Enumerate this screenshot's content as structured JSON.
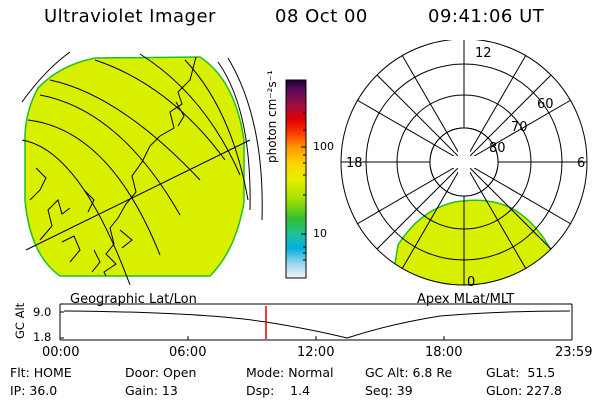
{
  "header": {
    "title": "Ultraviolet Imager",
    "date": "08 Oct 00",
    "time": "09:41:06 UT"
  },
  "colorbar": {
    "label": "photon cm⁻²s⁻¹",
    "tick_100": "100",
    "tick_10": "10"
  },
  "left_panel": {
    "caption": "Geographic Lat/Lon"
  },
  "right_panel": {
    "caption": "Apex MLat/MLT",
    "mlt_top": "12",
    "mlt_left": "18",
    "mlt_right": "6",
    "mlt_bottom": "0",
    "lat_60": "60",
    "lat_70": "70",
    "lat_80": "80"
  },
  "altitude_strip": {
    "axis_label": "GC Alt",
    "y_top": "9.0",
    "y_bottom": "1.8",
    "x_ticks": [
      "00:00",
      "06:00",
      "12:00",
      "18:00",
      "23:59"
    ]
  },
  "info": {
    "flt": "Flt: HOME",
    "ip": "IP: 36.0",
    "door": "Door: Open",
    "gain": "Gain: 13",
    "mode": "Mode: Normal",
    "dsp": "Dsp:    1.4",
    "gcalt": "GC Alt: 6.8 Re",
    "seq": "Seq: 39",
    "glat": "GLat:  51.5",
    "glon": "GLon: 227.8"
  },
  "colors": {
    "aurora_fill": "#d8f000",
    "aurora_edge": "#20c020",
    "marker": "#e00000"
  }
}
